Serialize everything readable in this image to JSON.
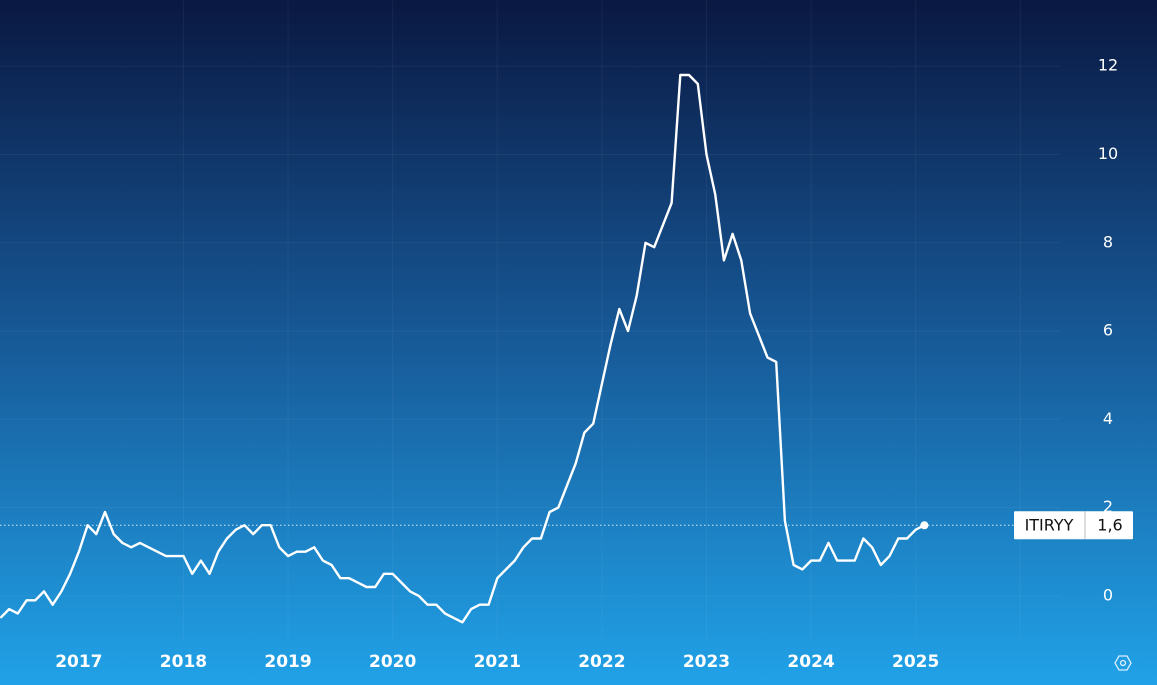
{
  "chart_data": {
    "type": "line",
    "categories": [
      null,
      null,
      null,
      null,
      null,
      null,
      null,
      null,
      null,
      "2017",
      null,
      null,
      null,
      null,
      null,
      null,
      null,
      null,
      null,
      null,
      null,
      "2018",
      null,
      null,
      null,
      null,
      null,
      null,
      null,
      null,
      null,
      null,
      null,
      "2019",
      null,
      null,
      null,
      null,
      null,
      null,
      null,
      null,
      null,
      null,
      null,
      "2020",
      null,
      null,
      null,
      null,
      null,
      null,
      null,
      null,
      null,
      null,
      null,
      "2021",
      null,
      null,
      null,
      null,
      null,
      null,
      null,
      null,
      null,
      null,
      null,
      "2022",
      null,
      null,
      null,
      null,
      null,
      null,
      null,
      null,
      null,
      null,
      null,
      "2023",
      null,
      null,
      null,
      null,
      null,
      null,
      null,
      null,
      null,
      null,
      null,
      "2024",
      null,
      null,
      null,
      null,
      null,
      null,
      null,
      null,
      null,
      null,
      null,
      "2025",
      null
    ],
    "series": [
      {
        "name": "ITIRYY",
        "color": "#ffffff",
        "values": [
          -0.5,
          -0.3,
          -0.4,
          -0.1,
          -0.1,
          0.1,
          -0.2,
          0.1,
          0.5,
          1.0,
          1.6,
          1.4,
          1.9,
          1.4,
          1.2,
          1.1,
          1.2,
          1.1,
          1.0,
          0.9,
          0.9,
          0.9,
          0.5,
          0.8,
          0.5,
          1.0,
          1.3,
          1.5,
          1.6,
          1.4,
          1.6,
          1.6,
          1.1,
          0.9,
          1.0,
          1.0,
          1.1,
          0.8,
          0.7,
          0.4,
          0.4,
          0.3,
          0.2,
          0.2,
          0.5,
          0.5,
          0.3,
          0.1,
          0.0,
          -0.2,
          -0.2,
          -0.4,
          -0.5,
          -0.6,
          -0.3,
          -0.2,
          -0.2,
          0.4,
          0.6,
          0.8,
          1.1,
          1.3,
          1.3,
          1.9,
          2.0,
          2.5,
          3.0,
          3.7,
          3.9,
          4.8,
          5.7,
          6.5,
          6.0,
          6.8,
          8.0,
          7.9,
          8.4,
          8.9,
          11.8,
          11.8,
          11.6,
          10.0,
          9.1,
          7.6,
          8.2,
          7.6,
          6.4,
          5.9,
          5.4,
          5.3,
          1.7,
          0.7,
          0.6,
          0.8,
          0.8,
          1.2,
          0.8,
          0.8,
          0.8,
          1.3,
          1.1,
          0.7,
          0.9,
          1.3,
          1.3,
          1.5,
          1.6
        ]
      }
    ],
    "last_value_label": "1,6",
    "ylim": [
      -1,
      13.5
    ],
    "yticks": [
      0,
      2,
      4,
      6,
      8,
      10,
      12
    ],
    "grid": true
  }
}
